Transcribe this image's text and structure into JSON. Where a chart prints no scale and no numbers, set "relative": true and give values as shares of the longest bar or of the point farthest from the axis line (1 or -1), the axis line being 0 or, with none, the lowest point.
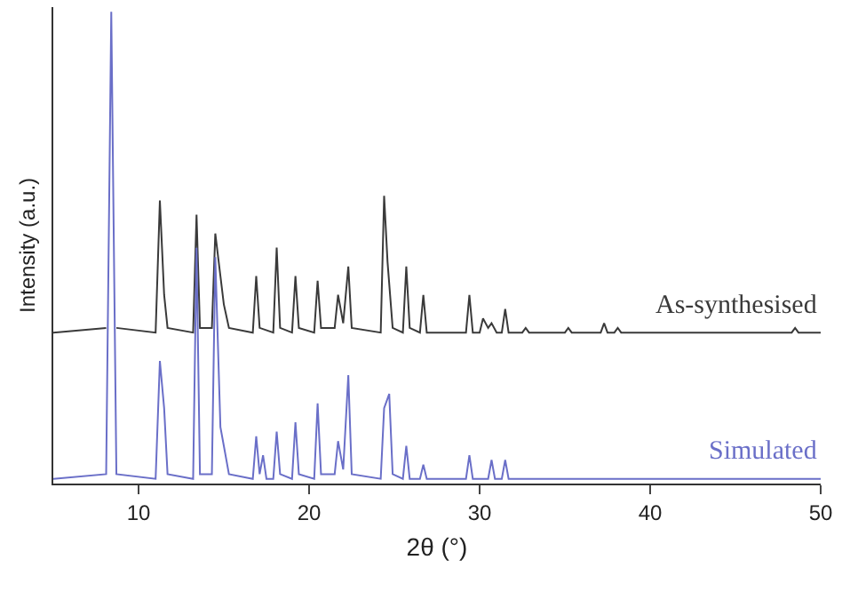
{
  "chart_data": {
    "type": "line",
    "xlabel": "2θ (°)",
    "ylabel": "Intensity (a.u.)",
    "relative": true,
    "tick_labels": "x",
    "xlim": [
      5,
      50
    ],
    "xticks": [
      10,
      20,
      30,
      40,
      50
    ],
    "grid": false,
    "marker": "none",
    "line_style": "solid",
    "series": [
      {
        "name": "As-synthesised",
        "color": "#3a3a3a",
        "x": [
          5,
          8.1,
          8.4,
          8.7,
          11.0,
          11.25,
          11.5,
          11.7,
          13.2,
          13.4,
          13.6,
          14.3,
          14.5,
          14.8,
          15.0,
          15.3,
          16.7,
          16.9,
          17.1,
          17.9,
          18.1,
          18.3,
          19.0,
          19.2,
          19.4,
          20.3,
          20.5,
          20.7,
          21.5,
          21.7,
          22.0,
          22.3,
          22.5,
          24.2,
          24.4,
          24.6,
          24.9,
          25.5,
          25.7,
          25.9,
          26.5,
          26.7,
          26.9,
          29.2,
          29.4,
          29.6,
          30.0,
          30.2,
          30.5,
          30.7,
          31.0,
          31.3,
          31.5,
          31.7,
          32.5,
          32.7,
          32.9,
          35.0,
          35.2,
          35.4,
          37.1,
          37.3,
          37.5,
          37.9,
          38.1,
          38.3,
          48.3,
          48.5,
          48.7,
          50
        ],
        "values": [
          0.32,
          0.33,
          null,
          0.33,
          0.32,
          0.6,
          0.4,
          0.33,
          0.32,
          0.57,
          0.33,
          0.33,
          0.53,
          0.44,
          0.38,
          0.33,
          0.32,
          0.44,
          0.33,
          0.32,
          0.5,
          0.33,
          0.32,
          0.44,
          0.33,
          0.32,
          0.43,
          0.33,
          0.33,
          0.4,
          0.34,
          0.46,
          0.33,
          0.32,
          0.61,
          0.47,
          0.33,
          0.32,
          0.46,
          0.33,
          0.32,
          0.4,
          0.32,
          0.32,
          0.4,
          0.32,
          0.32,
          0.35,
          0.33,
          0.34,
          0.32,
          0.32,
          0.37,
          0.32,
          0.32,
          0.33,
          0.32,
          0.32,
          0.33,
          0.32,
          0.32,
          0.34,
          0.32,
          0.32,
          0.33,
          0.32,
          0.32,
          0.33,
          0.32,
          0.32
        ]
      },
      {
        "name": "Simulated",
        "color": "#6a6fc8",
        "x": [
          5,
          8.1,
          8.4,
          8.7,
          11.0,
          11.25,
          11.5,
          11.7,
          13.2,
          13.4,
          13.6,
          14.3,
          14.5,
          14.8,
          15.0,
          15.3,
          16.7,
          16.9,
          17.1,
          17.3,
          17.5,
          17.9,
          18.1,
          18.3,
          19.0,
          19.2,
          19.4,
          20.3,
          20.5,
          20.7,
          21.5,
          21.7,
          22.0,
          22.3,
          22.5,
          24.2,
          24.4,
          24.7,
          24.9,
          25.5,
          25.7,
          25.9,
          26.5,
          26.7,
          26.9,
          29.2,
          29.4,
          29.6,
          30.5,
          30.7,
          30.9,
          31.3,
          31.5,
          31.7,
          50
        ],
        "values": [
          0.01,
          0.02,
          1,
          0.02,
          0.01,
          0.26,
          0.16,
          0.02,
          0.01,
          0.5,
          0.02,
          0.02,
          0.48,
          0.12,
          0.08,
          0.02,
          0.01,
          0.1,
          0.02,
          0.06,
          0.01,
          0.01,
          0.11,
          0.02,
          0.01,
          0.13,
          0.02,
          0.01,
          0.17,
          0.02,
          0.02,
          0.09,
          0.03,
          0.23,
          0.02,
          0.01,
          0.16,
          0.19,
          0.02,
          0.01,
          0.08,
          0.01,
          0.01,
          0.04,
          0.01,
          0.01,
          0.06,
          0.01,
          0.01,
          0.05,
          0.01,
          0.01,
          0.05,
          0.01,
          0.01
        ]
      }
    ]
  }
}
